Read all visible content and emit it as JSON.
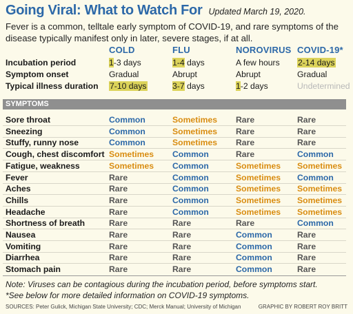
{
  "title": "Going Viral: What to Watch For",
  "updated": "Updated March 19, 2020.",
  "intro": "Fever is a common, telltale early symptom of COVID-19, and rare symptoms of the disease typically manifest only in later, severe stages, if at all.",
  "columns": [
    "COLD",
    "FLU",
    "NOROVIRUS",
    "COVID-19*"
  ],
  "info_rows": [
    {
      "label": "Incubation period",
      "values": [
        "1-3 days",
        "1-4 days",
        "A few hours",
        "2-14 days"
      ]
    },
    {
      "label": "Symptom onset",
      "values": [
        "Gradual",
        "Abrupt",
        "Abrupt",
        "Gradual"
      ]
    },
    {
      "label": "Typical illness duration",
      "values": [
        "7-10 days",
        "3-7 days",
        "1-2 days",
        "Undetermined"
      ]
    }
  ],
  "symptoms_header": "SYMPTOMS",
  "symptoms": [
    {
      "label": "Sore throat",
      "values": [
        "Common",
        "Sometimes",
        "Rare",
        "Rare"
      ]
    },
    {
      "label": "Sneezing",
      "values": [
        "Common",
        "Sometimes",
        "Rare",
        "Rare"
      ]
    },
    {
      "label": "Stuffy, runny nose",
      "values": [
        "Common",
        "Sometimes",
        "Rare",
        "Rare"
      ]
    },
    {
      "label": "Cough, chest discomfort",
      "values": [
        "Sometimes",
        "Common",
        "Rare",
        "Common"
      ]
    },
    {
      "label": "Fatigue, weakness",
      "values": [
        "Sometimes",
        "Common",
        "Sometimes",
        "Sometimes"
      ]
    },
    {
      "label": "Fever",
      "values": [
        "Rare",
        "Common",
        "Sometimes",
        "Common"
      ]
    },
    {
      "label": "Aches",
      "values": [
        "Rare",
        "Common",
        "Sometimes",
        "Sometimes"
      ]
    },
    {
      "label": "Chills",
      "values": [
        "Rare",
        "Common",
        "Sometimes",
        "Sometimes"
      ]
    },
    {
      "label": "Headache",
      "values": [
        "Rare",
        "Common",
        "Sometimes",
        "Sometimes"
      ]
    },
    {
      "label": "Shortness of breath",
      "values": [
        "Rare",
        "Rare",
        "Rare",
        "Common"
      ]
    },
    {
      "label": "Nausea",
      "values": [
        "Rare",
        "Rare",
        "Common",
        "Rare"
      ]
    },
    {
      "label": "Vomiting",
      "values": [
        "Rare",
        "Rare",
        "Common",
        "Rare"
      ]
    },
    {
      "label": "Diarrhea",
      "values": [
        "Rare",
        "Rare",
        "Common",
        "Rare"
      ]
    },
    {
      "label": "Stomach pain",
      "values": [
        "Rare",
        "Rare",
        "Common",
        "Rare"
      ]
    }
  ],
  "note1": "Note: Viruses can be contagious during the incubation period, before symptoms start.",
  "note2": "*See below for more detailed information on COVID-19 symptoms.",
  "sources": "SOURCES: Peter Gulick, Michigan State University; CDC; Merck Manual; University of Michigan",
  "credit": "GRAPHIC BY ROBERT ROY BRITT",
  "colors": {
    "title": "#2c68a8",
    "common": "#2c68a8",
    "sometimes": "#d98d12",
    "rare": "#555555",
    "highlight": "#dcd35a",
    "bar": "#8f8f8f",
    "background": "#fcfaea"
  }
}
